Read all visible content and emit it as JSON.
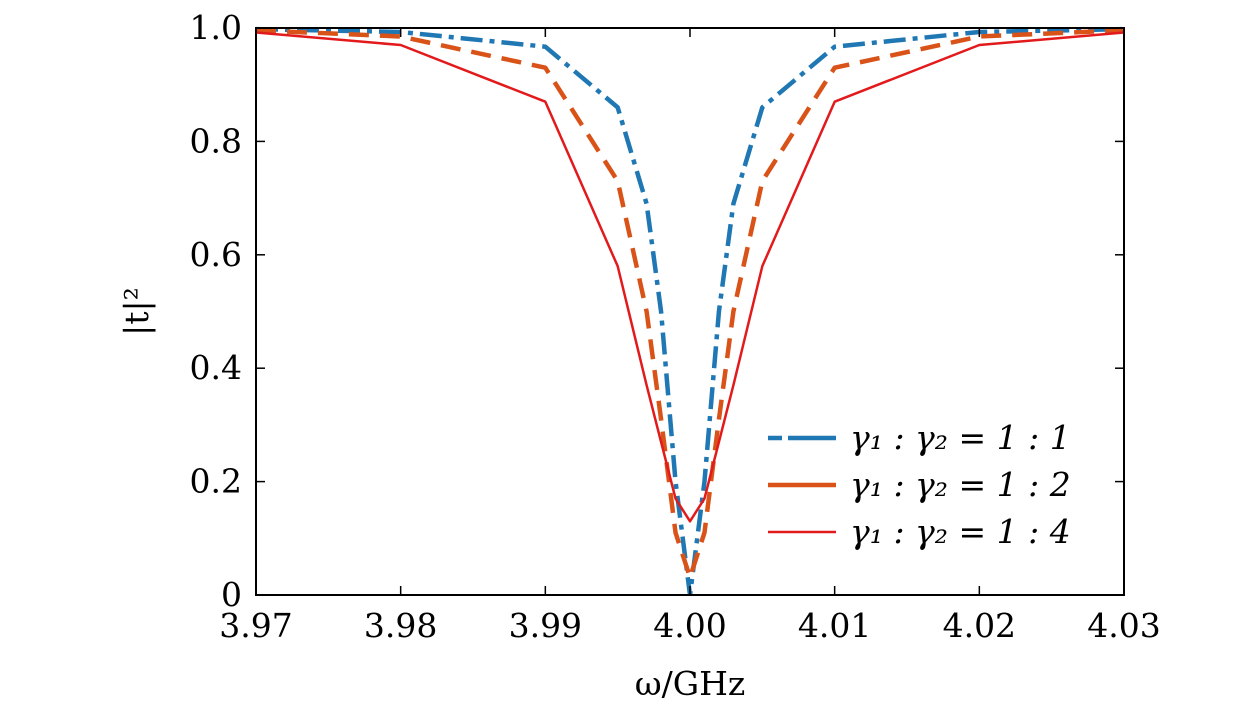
{
  "chart_data": {
    "type": "line",
    "title": "",
    "xlabel": "ω/GHz",
    "ylabel": "|t|²",
    "xlim": [
      3.97,
      4.03
    ],
    "ylim": [
      0,
      1.0
    ],
    "x_ticks": [
      3.97,
      3.98,
      3.99,
      4.0,
      4.01,
      4.02,
      4.03
    ],
    "x_tick_labels": [
      "3.97",
      "3.98",
      "3.99",
      "4.00",
      "4.01",
      "4.02",
      "4.03"
    ],
    "y_ticks": [
      0,
      0.2,
      0.4,
      0.6,
      0.8,
      1.0
    ],
    "y_tick_labels": [
      "0",
      "0.2",
      "0.4",
      "0.6",
      "0.8",
      "1.0"
    ],
    "grid": false,
    "legend_position": "bottom-right",
    "center_frequency": 4.0,
    "series": [
      {
        "name": "γ₁ : γ₂ = 1 : 1",
        "color": "#1f77b4",
        "style": "dash-dot",
        "min_value": 0.0,
        "x": [
          3.97,
          3.98,
          3.99,
          3.995,
          3.997,
          3.998,
          3.999,
          4.0,
          4.001,
          4.002,
          4.003,
          4.005,
          4.01,
          4.02,
          4.03
        ],
        "values": [
          0.998,
          0.993,
          0.967,
          0.86,
          0.69,
          0.5,
          0.2,
          0.0,
          0.2,
          0.5,
          0.69,
          0.86,
          0.967,
          0.993,
          0.998
        ]
      },
      {
        "name": "γ₁ : γ₂ = 1 : 2",
        "color": "#d95319",
        "style": "dashed",
        "min_value": 0.031,
        "x": [
          3.97,
          3.98,
          3.99,
          3.995,
          3.997,
          3.998,
          3.999,
          4.0,
          4.001,
          4.002,
          4.003,
          4.005,
          4.01,
          4.02,
          4.03
        ],
        "values": [
          0.996,
          0.985,
          0.93,
          0.73,
          0.5,
          0.31,
          0.11,
          0.031,
          0.11,
          0.31,
          0.5,
          0.73,
          0.93,
          0.985,
          0.996
        ]
      },
      {
        "name": "γ₁ : γ₂ = 1 : 4",
        "color": "#e31a1c",
        "style": "solid",
        "min_value": 0.13,
        "x": [
          3.97,
          3.98,
          3.99,
          3.995,
          3.997,
          3.998,
          3.999,
          4.0,
          4.001,
          4.002,
          4.003,
          4.005,
          4.01,
          4.02,
          4.03
        ],
        "values": [
          0.992,
          0.97,
          0.87,
          0.58,
          0.37,
          0.27,
          0.17,
          0.13,
          0.17,
          0.27,
          0.37,
          0.58,
          0.87,
          0.97,
          0.992
        ]
      }
    ]
  }
}
